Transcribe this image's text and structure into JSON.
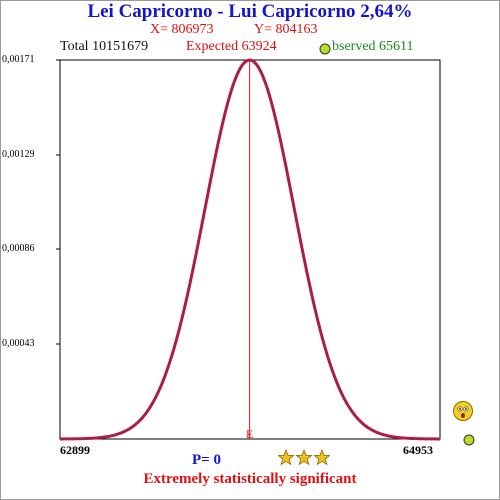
{
  "title": "Lei Capricorno - Lui Capricorno  2,64%",
  "x_label": "X= 806973",
  "y_label": "Y= 804163",
  "total_label": "Total  10151679",
  "expected_label": "Expected  63924",
  "observed_label": "bserved  65611",
  "p_label": "P= 0",
  "significance_label": "Extremely statistically significant",
  "colors": {
    "title": "#1414c8",
    "curve": "#d01818",
    "curve_inner": "#6a2a9a",
    "expected": "#e01010",
    "observed": "#1a8a1a",
    "star": "#f0c020",
    "observed_dot": "#b8e020"
  },
  "icons": [
    "observed-dot-icon",
    "star-icon",
    "smiley-face-icon"
  ],
  "chart_data": {
    "type": "line",
    "title": "Lei Capricorno - Lui Capricorno  2,64%",
    "x_range": [
      62899,
      64953
    ],
    "y_range": [
      0,
      0.00171
    ],
    "y_ticks": [
      "0,00171",
      "0,00129",
      "0,00086",
      "0,00043"
    ],
    "y_tick_values": [
      0.00171,
      0.00129,
      0.00086,
      0.00043
    ],
    "x_tick_labels": [
      "62899",
      "64953"
    ],
    "expected_marker": {
      "label": "E",
      "x": 63924
    },
    "series": [
      {
        "name": "",
        "mean": 63924,
        "peak": 0.00171
      }
    ],
    "grid": false
  }
}
